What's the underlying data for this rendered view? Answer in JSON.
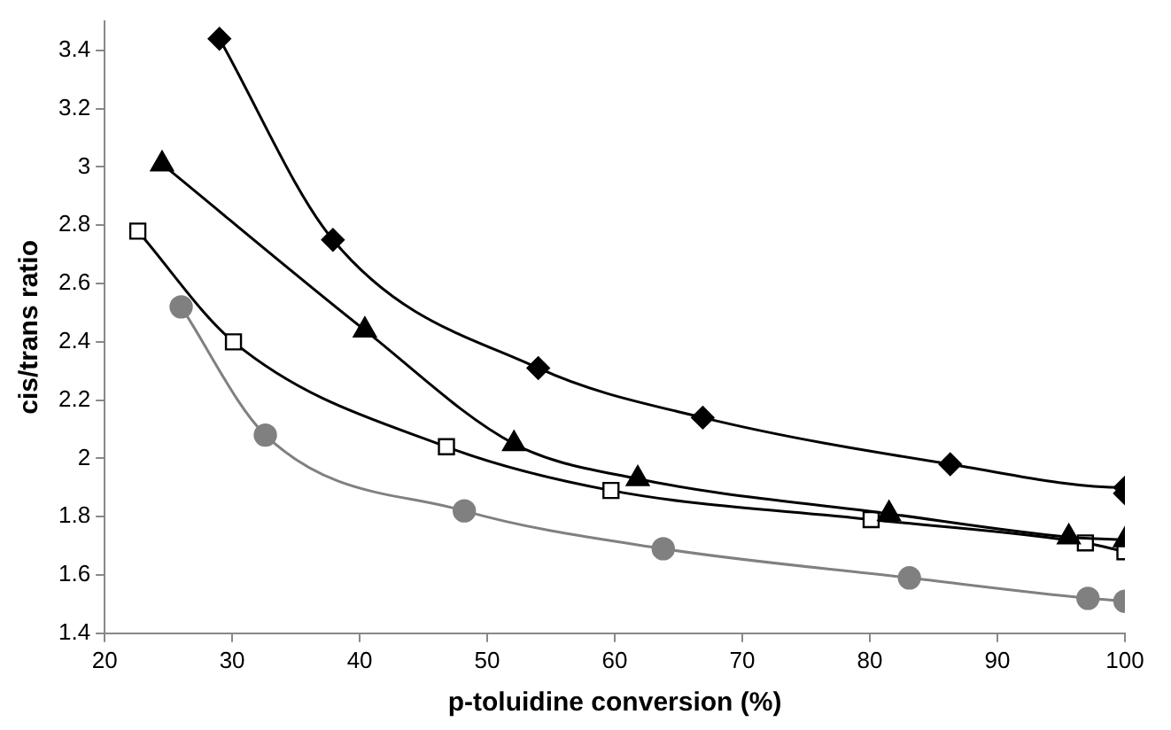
{
  "chart_data": {
    "type": "line",
    "xlabel": "p-toluidine conversion (%)",
    "ylabel": "cis/trans ratio",
    "xlim": [
      20,
      100
    ],
    "xticks": [
      20,
      30,
      40,
      50,
      60,
      70,
      80,
      90,
      100
    ],
    "ylim": [
      1.4,
      3.5
    ],
    "yticks": [
      1.4,
      1.6,
      1.8,
      2,
      2.2,
      2.4,
      2.6,
      2.8,
      3,
      3.2,
      3.4
    ],
    "grid": false,
    "legend": false,
    "series": [
      {
        "color": "#000000",
        "marker": "diamond",
        "x": [
          29,
          37.9,
          54,
          66.9,
          86.3,
          100,
          100
        ],
        "values": [
          3.44,
          2.75,
          2.31,
          2.14,
          1.98,
          1.9,
          1.88
        ]
      },
      {
        "color": "#000000",
        "marker": "triangle",
        "x": [
          24.5,
          40.4,
          52.1,
          61.8,
          81.5,
          95.6,
          100
        ],
        "values": [
          3.01,
          2.44,
          2.05,
          1.93,
          1.81,
          1.73,
          1.72
        ]
      },
      {
        "color": "#000000",
        "marker": "square",
        "x": [
          22.6,
          30.1,
          46.8,
          59.7,
          80.1,
          96.9,
          100
        ],
        "values": [
          2.78,
          2.4,
          2.04,
          1.89,
          1.79,
          1.71,
          1.68
        ]
      },
      {
        "color": "#808080",
        "marker": "circle",
        "x": [
          26,
          32.6,
          48.2,
          63.8,
          83.1,
          97.1,
          100
        ],
        "values": [
          2.52,
          2.08,
          1.82,
          1.69,
          1.59,
          1.52,
          1.51
        ]
      }
    ]
  }
}
